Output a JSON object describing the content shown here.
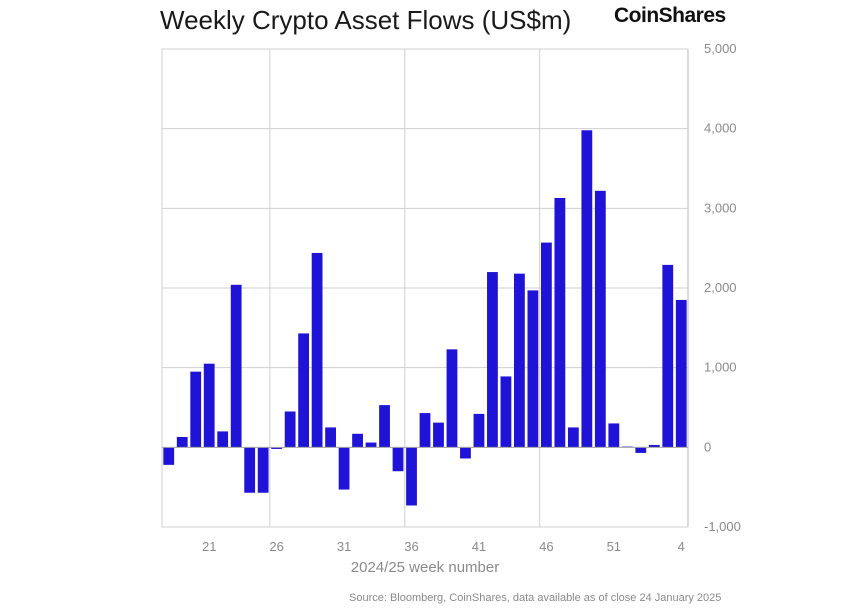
{
  "brand": "CoinShares",
  "colors": {
    "bar": "#1e13d6",
    "grid": "#cfcfcf",
    "text": "#8a8a8a",
    "title": "#1a1a1a"
  },
  "chart_data": {
    "type": "bar",
    "title": "Weekly Crypto Asset Flows (US$m)",
    "xlabel": "2024/25 week number",
    "ylabel": "",
    "source": "Source: Bloomberg, CoinShares, data available as of close 24 January 2025",
    "ylim": [
      -1000,
      5000
    ],
    "y_ticks": [
      -1000,
      0,
      1000,
      2000,
      3000,
      4000,
      5000
    ],
    "y_tick_labels": [
      "-1,000",
      "0",
      "1,000",
      "2,000",
      "3,000",
      "4,000",
      "5,000"
    ],
    "y_axis_position": "right",
    "grid": true,
    "x_tick_labels": [
      {
        "label": "21",
        "index": 3
      },
      {
        "label": "26",
        "index": 8
      },
      {
        "label": "31",
        "index": 13
      },
      {
        "label": "36",
        "index": 18
      },
      {
        "label": "41",
        "index": 23
      },
      {
        "label": "46",
        "index": 28
      },
      {
        "label": "51",
        "index": 33
      },
      {
        "label": "4",
        "index": 38
      }
    ],
    "vertical_grid_indices": [
      8,
      18,
      28
    ],
    "values": [
      -220,
      130,
      950,
      1050,
      200,
      2040,
      -570,
      -570,
      -20,
      450,
      1430,
      2440,
      250,
      -530,
      170,
      60,
      530,
      -300,
      -730,
      430,
      310,
      1230,
      -140,
      420,
      2200,
      890,
      2180,
      1970,
      2570,
      3130,
      250,
      3980,
      3220,
      300,
      10,
      -70,
      30,
      2290,
      1850
    ]
  }
}
